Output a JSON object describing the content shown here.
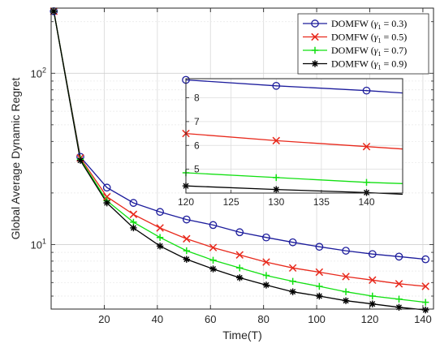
{
  "chart_data": {
    "type": "line",
    "xlabel": "Time(T)",
    "ylabel": "Global Average Dynamic Regret",
    "yscale": "log",
    "xlim": [
      0,
      144
    ],
    "ylim": [
      4.2,
      240
    ],
    "xticks": [
      "20",
      "40",
      "60",
      "80",
      "100",
      "120",
      "140"
    ],
    "yticks": [
      "10^1",
      "10^2"
    ],
    "grid": true,
    "legend_position": "top-right",
    "x": [
      1,
      11,
      21,
      31,
      41,
      51,
      61,
      71,
      81,
      91,
      101,
      111,
      121,
      131,
      141
    ],
    "series": [
      {
        "name": "DOMFW (γ₁ = 0.3)",
        "legend_base": "DOMFW (",
        "legend_var": "γ",
        "legend_sub": "1",
        "legend_rest": " = 0.3)",
        "color": "#1c1c9c",
        "marker": "circle",
        "values": [
          230,
          32.5,
          21.5,
          17.5,
          15.5,
          14.0,
          13.0,
          11.8,
          11.0,
          10.3,
          9.7,
          9.2,
          8.8,
          8.5,
          8.2
        ]
      },
      {
        "name": "DOMFW (γ₁ = 0.5)",
        "legend_base": "DOMFW (",
        "legend_var": "γ",
        "legend_sub": "1",
        "legend_rest": " = 0.5)",
        "color": "#e8291c",
        "marker": "x",
        "values": [
          230,
          32.0,
          19.0,
          15.0,
          12.5,
          10.8,
          9.6,
          8.7,
          7.9,
          7.3,
          6.9,
          6.5,
          6.2,
          5.9,
          5.7
        ]
      },
      {
        "name": "DOMFW (γ₁ = 0.7)",
        "legend_base": "DOMFW (",
        "legend_var": "γ",
        "legend_sub": "1",
        "legend_rest": " = 0.7)",
        "color": "#12e012",
        "marker": "plus",
        "values": [
          230,
          31.5,
          18.0,
          13.5,
          11.0,
          9.2,
          8.1,
          7.3,
          6.6,
          6.1,
          5.7,
          5.3,
          5.0,
          4.8,
          4.6
        ]
      },
      {
        "name": "DOMFW (γ₁ = 0.9)",
        "legend_base": "DOMFW (",
        "legend_var": "γ",
        "legend_sub": "1",
        "legend_rest": " = 0.9)",
        "color": "#000000",
        "marker": "star",
        "values": [
          230,
          31.0,
          17.5,
          12.5,
          9.8,
          8.2,
          7.2,
          6.4,
          5.8,
          5.3,
          5.0,
          4.7,
          4.5,
          4.3,
          4.15
        ]
      }
    ],
    "inset": {
      "xlim": [
        120,
        144
      ],
      "ylim": [
        4.0,
        8.8
      ],
      "xticks": [
        "120",
        "125",
        "130",
        "135",
        "140"
      ],
      "yticks": [
        "5",
        "6",
        "7",
        "8"
      ],
      "x": [
        120,
        130,
        140,
        144
      ],
      "series": [
        {
          "name": "DOMFW (γ₁ = 0.3)",
          "values": [
            8.75,
            8.5,
            8.3,
            8.2
          ]
        },
        {
          "name": "DOMFW (γ₁ = 0.5)",
          "values": [
            6.5,
            6.2,
            5.95,
            5.85
          ]
        },
        {
          "name": "DOMFW (γ₁ = 0.7)",
          "values": [
            4.85,
            4.65,
            4.45,
            4.4
          ]
        },
        {
          "name": "DOMFW (γ₁ = 0.9)",
          "values": [
            4.3,
            4.15,
            4.02,
            3.95
          ]
        }
      ]
    }
  }
}
